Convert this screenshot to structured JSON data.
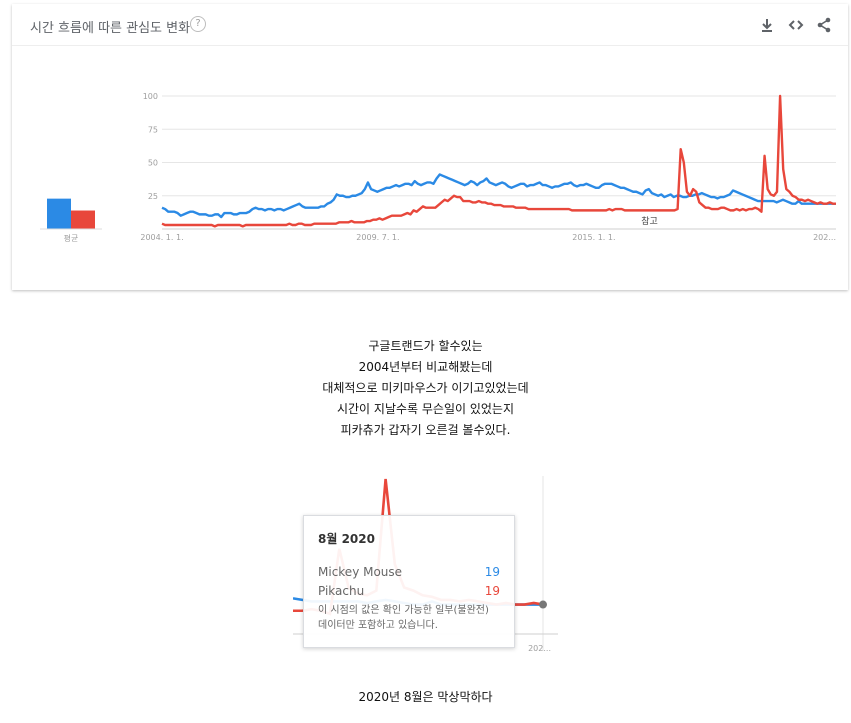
{
  "card": {
    "title": "시간 흐름에 따른 관심도 변화",
    "help_icon": "question-circle-icon",
    "actions": [
      {
        "name": "download-icon",
        "glyph": "⤓"
      },
      {
        "name": "embed-icon",
        "glyph": "‹›"
      },
      {
        "name": "share-icon",
        "glyph": "share"
      }
    ]
  },
  "colors": {
    "series1": "#2b8ae5",
    "series2": "#e8473b",
    "grid": "#e6e6e6",
    "axis_text": "#9e9e9e"
  },
  "chart_data": [
    {
      "type": "bar",
      "categories": [
        "평균"
      ],
      "series": [
        {
          "name": "Mickey Mouse",
          "values": [
            23
          ]
        },
        {
          "name": "Pikachu",
          "values": [
            14
          ]
        }
      ],
      "ylim": [
        0,
        100
      ]
    },
    {
      "type": "line",
      "x_ticks": [
        {
          "x": 0,
          "label": "2004. 1. 1."
        },
        {
          "x": 66,
          "label": "2009. 7. 1."
        },
        {
          "x": 132,
          "label": "2015. 1. 1."
        },
        {
          "x": 206,
          "label": "202..."
        }
      ],
      "y_ticks": [
        100,
        75,
        50,
        25
      ],
      "ylim": [
        0,
        100
      ],
      "xlim": [
        0,
        206
      ],
      "annotation": {
        "x": 149,
        "label": "참고"
      },
      "series": [
        {
          "name": "Mickey Mouse",
          "values": [
            16,
            15,
            13,
            13,
            13,
            12,
            10,
            11,
            12,
            13,
            13,
            12,
            11,
            11,
            11,
            10,
            10,
            11,
            11,
            9,
            12,
            12,
            12,
            11,
            11,
            12,
            12,
            12,
            13,
            15,
            16,
            15,
            15,
            14,
            15,
            15,
            14,
            15,
            15,
            14,
            15,
            16,
            17,
            18,
            19,
            17,
            16,
            16,
            16,
            16,
            16,
            17,
            17,
            19,
            20,
            22,
            26,
            25,
            25,
            24,
            24,
            25,
            25,
            26,
            27,
            30,
            35,
            30,
            29,
            28,
            29,
            30,
            31,
            31,
            32,
            33,
            32,
            33,
            34,
            34,
            33,
            36,
            34,
            33,
            34,
            35,
            35,
            34,
            38,
            41,
            40,
            39,
            38,
            37,
            36,
            35,
            34,
            33,
            34,
            36,
            35,
            33,
            35,
            36,
            38,
            35,
            34,
            33,
            34,
            35,
            34,
            32,
            31,
            32,
            33,
            34,
            34,
            32,
            33,
            33,
            34,
            35,
            33,
            33,
            32,
            31,
            32,
            32,
            33,
            34,
            34,
            35,
            33,
            32,
            33,
            33,
            34,
            33,
            32,
            31,
            31,
            33,
            34,
            34,
            34,
            33,
            32,
            31,
            31,
            30,
            29,
            28,
            28,
            27,
            26,
            29,
            30,
            27,
            26,
            25,
            26,
            24,
            25,
            26,
            24,
            25,
            25,
            24,
            24,
            25,
            25,
            26,
            26,
            27,
            26,
            25,
            24,
            24,
            23,
            24,
            24,
            25,
            26,
            29,
            28,
            27,
            26,
            25,
            24,
            23,
            22,
            21,
            21,
            21,
            21,
            21,
            21,
            20,
            21,
            22,
            21,
            20,
            19,
            19,
            21,
            19,
            19,
            19,
            19,
            19,
            19,
            19,
            19,
            19,
            19,
            19,
            19
          ],
          "label_note": ""
        },
        {
          "name": "Pikachu",
          "values": [
            4,
            3,
            3,
            3,
            3,
            3,
            3,
            3,
            3,
            3,
            3,
            3,
            3,
            3,
            3,
            3,
            3,
            2,
            3,
            3,
            3,
            3,
            3,
            3,
            3,
            3,
            2,
            3,
            3,
            3,
            3,
            3,
            3,
            3,
            3,
            3,
            3,
            3,
            3,
            3,
            3,
            4,
            3,
            3,
            4,
            4,
            3,
            3,
            3,
            4,
            4,
            4,
            4,
            4,
            4,
            4,
            4,
            5,
            5,
            5,
            5,
            6,
            5,
            5,
            5,
            5,
            6,
            6,
            7,
            7,
            8,
            7,
            8,
            9,
            10,
            10,
            10,
            10,
            11,
            12,
            11,
            14,
            13,
            15,
            17,
            16,
            16,
            16,
            16,
            18,
            20,
            22,
            21,
            23,
            25,
            24,
            24,
            21,
            21,
            21,
            20,
            20,
            21,
            20,
            20,
            19,
            19,
            18,
            18,
            18,
            17,
            17,
            17,
            17,
            16,
            16,
            16,
            16,
            15,
            15,
            15,
            15,
            15,
            15,
            15,
            15,
            15,
            15,
            15,
            15,
            15,
            15,
            14,
            14,
            14,
            14,
            14,
            14,
            14,
            14,
            14,
            14,
            14,
            14,
            15,
            14,
            15,
            15,
            15,
            14,
            14,
            14,
            14,
            14,
            14,
            14,
            14,
            14,
            14,
            14,
            14,
            14,
            14,
            14,
            14,
            14,
            15,
            60,
            50,
            28,
            25,
            30,
            28,
            20,
            18,
            16,
            16,
            15,
            15,
            15,
            16,
            16,
            15,
            14,
            14,
            15,
            14,
            15,
            14,
            15,
            15,
            16,
            15,
            13,
            55,
            30,
            26,
            25,
            28,
            100,
            45,
            30,
            28,
            25,
            24,
            22,
            22,
            21,
            22,
            21,
            20,
            19,
            20,
            19,
            19,
            20,
            19,
            19
          ],
          "label_note": ""
        }
      ]
    }
  ],
  "texts": {
    "caption_lines": [
      "구글트랜드가 할수있는",
      "2004년부터 비교해봤는데",
      "대체적으로 미키마우스가 이기고있었는데",
      "시간이 지날수록 무슨일이 있었는지",
      "피카츄가 갑자기 오른걸 볼수있다."
    ],
    "caption_bottom": "2020년 8월은 막상막하다"
  },
  "tooltip": {
    "title": "8월 2020",
    "rows": [
      {
        "name": "Mickey Mouse",
        "value": "19"
      },
      {
        "name": "Pikachu",
        "value": "19"
      }
    ],
    "note": "이 시점의 값은 확인 가능한 일부(불완전) 데이터만 포함하고 있습니다.",
    "axis_label": "202..."
  }
}
